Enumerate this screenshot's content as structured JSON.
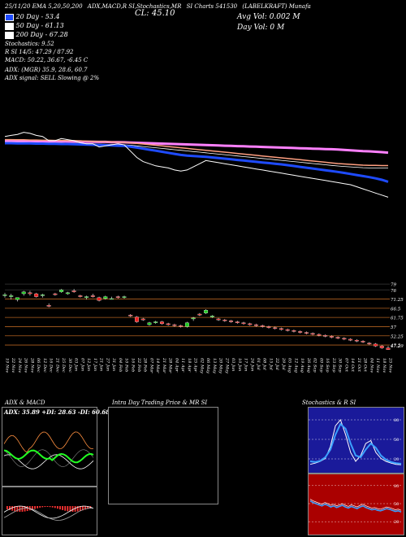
{
  "header": {
    "top_row": [
      "25/11/20 EMA 5,20,50,200",
      "ADX,MACD,R SI,Stochastics,MR",
      "SI Charts 541530",
      "(LABELKRAFT) Munafa"
    ],
    "close": "CL: 45.10",
    "ema_labels": [
      "20  Day - 53.4",
      "50  Day - 61.13",
      "200  Day - 67.28"
    ],
    "stoch_line": "Stochastics: 9.52",
    "rsi_line": "R                SI 14/5: 47.29 / 87.92",
    "macd_line": "MACD: 50.22, 36.67, -6.45  C",
    "adx_line": "ADX:                               (MGR) 35.9,  28.6,  60.7",
    "signal_line": "ADX  signal: SELL  Slowing @ 2%",
    "avg_vol": "Avg Vol: 0.002  M",
    "day_vol": "Day Vol: 0   M"
  },
  "colors": {
    "ema20": "#1e4bff",
    "ema50": "#ff9f80",
    "ema200": "#ff80ff",
    "ema5": "#ffffff",
    "bull": "#22cc22",
    "bear": "#ee2222",
    "grid": "#b06020",
    "adx_line": "#ffffff",
    "dip": "#22ff22",
    "dim": "#ff9040",
    "stoch_bg": "#1a1a9a",
    "rsi_bg": "#aa0000"
  },
  "chart_data": [
    {
      "type": "candlestick",
      "title": "Daily price",
      "y_ticks": [
        79,
        76,
        71.25,
        66.5,
        61.75,
        57,
        52.25,
        47.5,
        47.29
      ],
      "ylim": [
        45,
        82
      ],
      "dates": [
        "19 Nov",
        "22 Nov",
        "24 Nov",
        "26 Nov",
        "28 Nov",
        "06 Dec",
        "12 Dec",
        "16 Dec",
        "21 Dec",
        "25 Dec",
        "30 Dec",
        "03 Jan",
        "07 Jan",
        "12 Jan",
        "17 Jan",
        "21 Jan",
        "27 Jan",
        "31 Jan",
        "04 Feb",
        "10 Feb",
        "16 Feb",
        "22 Feb",
        "28 Feb",
        "07 Mar",
        "14 Mar",
        "21 Mar",
        "28 Mar",
        "04 Apr",
        "11 Apr",
        "18 Apr",
        "25 Apr",
        "02 May",
        "06 May",
        "13 May",
        "20 May",
        "27 May",
        "03 Jun",
        "10 Jun",
        "17 Jun",
        "24 Jun",
        "01 Jul",
        "08 Jul",
        "15 Jul",
        "22 Jul",
        "29 Jul",
        "05 Aug",
        "12 Aug",
        "19 Aug",
        "26 Aug",
        "02 Sep",
        "09 Sep",
        "16 Sep",
        "23 Sep",
        "30 Sep",
        "07 Oct",
        "14 Oct",
        "21 Oct",
        "28 Oct",
        "04 Nov",
        "11 Nov",
        "18 Nov",
        "25 Nov"
      ],
      "candles": [
        {
          "o": 73,
          "h": 74.5,
          "l": 72,
          "c": 73.5
        },
        {
          "o": 72.5,
          "h": 74,
          "l": 71,
          "c": 73
        },
        {
          "o": 71,
          "h": 72,
          "l": 70,
          "c": 72
        },
        {
          "o": 74,
          "h": 75.5,
          "l": 73,
          "c": 75
        },
        {
          "o": 74.5,
          "h": 75.5,
          "l": 73,
          "c": 74
        },
        {
          "o": 74,
          "h": 74.5,
          "l": 72,
          "c": 72.5
        },
        {
          "o": 73,
          "h": 74,
          "l": 72,
          "c": 73.5
        },
        {
          "o": 68,
          "h": 69,
          "l": 67,
          "c": 67.5
        },
        {
          "o": 74,
          "h": 74.5,
          "l": 73,
          "c": 73.5
        },
        {
          "o": 75,
          "h": 76.5,
          "l": 74.5,
          "c": 76
        },
        {
          "o": 74,
          "h": 75,
          "l": 73.5,
          "c": 74.5
        },
        {
          "o": 75.5,
          "h": 76.5,
          "l": 74.5,
          "c": 75
        },
        {
          "o": 73,
          "h": 73.5,
          "l": 72,
          "c": 72.5
        },
        {
          "o": 72,
          "h": 73,
          "l": 71,
          "c": 72.5
        },
        {
          "o": 73,
          "h": 74,
          "l": 72,
          "c": 72.5
        },
        {
          "o": 72,
          "h": 72.5,
          "l": 70,
          "c": 70.5
        },
        {
          "o": 71.5,
          "h": 73,
          "l": 71,
          "c": 72.5
        },
        {
          "o": 71.5,
          "h": 72.5,
          "l": 71,
          "c": 71.5
        },
        {
          "o": 72.5,
          "h": 73,
          "l": 71.5,
          "c": 72
        },
        {
          "o": 72,
          "h": 73,
          "l": 71.5,
          "c": 72.5
        },
        {
          "o": 63,
          "h": 63.5,
          "l": 62,
          "c": 62.5
        },
        {
          "o": 62,
          "h": 62.5,
          "l": 59,
          "c": 59.5
        },
        {
          "o": 61,
          "h": 61.5,
          "l": 60,
          "c": 60.5
        },
        {
          "o": 58,
          "h": 59.5,
          "l": 57.5,
          "c": 59
        },
        {
          "o": 59,
          "h": 60,
          "l": 58.5,
          "c": 59.5
        },
        {
          "o": 59.5,
          "h": 60,
          "l": 58,
          "c": 58.5
        },
        {
          "o": 58.5,
          "h": 59,
          "l": 57.5,
          "c": 58
        },
        {
          "o": 58,
          "h": 58.5,
          "l": 57,
          "c": 57.5
        },
        {
          "o": 57.5,
          "h": 58,
          "l": 56.5,
          "c": 57
        },
        {
          "o": 57,
          "h": 59.5,
          "l": 56.5,
          "c": 59
        },
        {
          "o": 61,
          "h": 62,
          "l": 60,
          "c": 61.5
        },
        {
          "o": 63.5,
          "h": 64,
          "l": 62.5,
          "c": 63
        },
        {
          "o": 64,
          "h": 66,
          "l": 63.5,
          "c": 65.5
        },
        {
          "o": 62,
          "h": 63,
          "l": 61.5,
          "c": 62.5
        },
        {
          "o": 61,
          "h": 61.5,
          "l": 60,
          "c": 60.5
        },
        {
          "o": 60.5,
          "h": 61,
          "l": 59.5,
          "c": 60
        },
        {
          "o": 60,
          "h": 60.5,
          "l": 59,
          "c": 59.5
        },
        {
          "o": 59.5,
          "h": 60,
          "l": 58.5,
          "c": 59
        },
        {
          "o": 59,
          "h": 59.5,
          "l": 58,
          "c": 58.5
        },
        {
          "o": 58.5,
          "h": 59,
          "l": 57.5,
          "c": 58
        },
        {
          "o": 58,
          "h": 58.5,
          "l": 57,
          "c": 57.5
        },
        {
          "o": 57.5,
          "h": 58,
          "l": 56.5,
          "c": 57
        },
        {
          "o": 57,
          "h": 57.5,
          "l": 56,
          "c": 56.5
        },
        {
          "o": 56.5,
          "h": 57,
          "l": 55.5,
          "c": 56
        },
        {
          "o": 56,
          "h": 56.5,
          "l": 55,
          "c": 55.5
        },
        {
          "o": 55.5,
          "h": 56,
          "l": 54.5,
          "c": 55
        },
        {
          "o": 55,
          "h": 55.5,
          "l": 54,
          "c": 54.5
        },
        {
          "o": 54.5,
          "h": 55,
          "l": 53.5,
          "c": 54
        },
        {
          "o": 54,
          "h": 54.5,
          "l": 53,
          "c": 53.5
        },
        {
          "o": 53.5,
          "h": 54,
          "l": 52.5,
          "c": 53
        },
        {
          "o": 53,
          "h": 53.5,
          "l": 52,
          "c": 52.5
        },
        {
          "o": 52.5,
          "h": 53,
          "l": 51.5,
          "c": 52
        },
        {
          "o": 52,
          "h": 52.5,
          "l": 51,
          "c": 51.5
        },
        {
          "o": 51.5,
          "h": 52,
          "l": 50.5,
          "c": 51
        },
        {
          "o": 51,
          "h": 51.5,
          "l": 50,
          "c": 50.5
        },
        {
          "o": 50.5,
          "h": 51,
          "l": 49.5,
          "c": 50
        },
        {
          "o": 50,
          "h": 50.5,
          "l": 49,
          "c": 49.5
        },
        {
          "o": 49.5,
          "h": 50,
          "l": 48.5,
          "c": 49
        },
        {
          "o": 48.5,
          "h": 49,
          "l": 47.5,
          "c": 48
        },
        {
          "o": 48,
          "h": 48.5,
          "l": 46.5,
          "c": 47
        },
        {
          "o": 47,
          "h": 47.5,
          "l": 45.5,
          "c": 46
        },
        {
          "o": 46,
          "h": 47,
          "l": 45,
          "c": 45.1
        }
      ],
      "ema5": [
        75,
        75.5,
        76,
        77,
        76.5,
        75.5,
        75,
        73,
        73,
        74,
        73.5,
        73,
        72,
        71.5,
        71.5,
        70,
        70.5,
        71,
        71.5,
        71,
        68,
        65,
        63,
        62,
        61,
        60.5,
        60,
        59,
        58.5,
        59,
        60.5,
        62,
        63.5,
        63,
        62.5,
        62,
        61.5,
        61,
        60.5,
        60,
        59.5,
        59,
        58.5,
        58,
        57.5,
        57,
        56.5,
        56,
        55.5,
        55,
        54.5,
        54,
        53.5,
        53,
        52.5,
        52,
        51,
        50,
        49,
        48,
        47,
        46
      ],
      "ema20": [
        71.8,
        71.8,
        71.7,
        71.7,
        71.7,
        71.6,
        71.6,
        71.5,
        71.5,
        71.4,
        71.4,
        71.3,
        71.2,
        71.1,
        71,
        70.9,
        70.8,
        70.7,
        70.6,
        70.5,
        70.1,
        69.7,
        69.2,
        68.7,
        68.2,
        67.7,
        67.2,
        66.7,
        66.2,
        65.9,
        65.7,
        65.5,
        65.3,
        65,
        64.7,
        64.4,
        64.1,
        63.8,
        63.5,
        63.2,
        62.9,
        62.6,
        62.3,
        62,
        61.7,
        61.3,
        60.9,
        60.5,
        60.1,
        59.7,
        59.3,
        58.9,
        58.5,
        58.1,
        57.6,
        57.1,
        56.6,
        56.1,
        55.6,
        55,
        54.3,
        53.4
      ],
      "ema50": [
        73.5,
        73.5,
        73.4,
        73.4,
        73.3,
        73.3,
        73.2,
        73.2,
        73.1,
        73.1,
        73,
        73,
        72.9,
        72.8,
        72.7,
        72.6,
        72.5,
        72.4,
        72.3,
        72.2,
        72,
        71.7,
        71.4,
        71.1,
        70.8,
        70.5,
        70.2,
        69.9,
        69.6,
        69.3,
        69,
        68.7,
        68.4,
        68.1,
        67.8,
        67.5,
        67.2,
        66.9,
        66.6,
        66.3,
        66,
        65.7,
        65.4,
        65.1,
        64.8,
        64.5,
        64.2,
        63.9,
        63.6,
        63.3,
        63,
        62.7,
        62.4,
        62.1,
        61.9,
        61.7,
        61.5,
        61.3,
        61.2,
        61.2,
        61.1,
        61.13
      ],
      "ema200": [
        72.8,
        72.8,
        72.8,
        72.8,
        72.8,
        72.8,
        72.7,
        72.7,
        72.7,
        72.7,
        72.6,
        72.6,
        72.6,
        72.5,
        72.5,
        72.4,
        72.4,
        72.3,
        72.3,
        72.2,
        72.1,
        72,
        71.9,
        71.8,
        71.7,
        71.6,
        71.5,
        71.4,
        71.3,
        71.2,
        71.1,
        71,
        70.9,
        70.8,
        70.7,
        70.6,
        70.5,
        70.4,
        70.3,
        70.2,
        70.1,
        70,
        69.9,
        69.8,
        69.7,
        69.6,
        69.5,
        69.4,
        69.3,
        69.2,
        69.1,
        69,
        68.9,
        68.8,
        68.6,
        68.4,
        68.2,
        68,
        67.9,
        67.7,
        67.5,
        67.28
      ]
    }
  ],
  "panels": {
    "adx_title": "ADX  & MACD",
    "adx_values": "ADX: 35.89  +DI: 28.63  -DI: 60.68",
    "mrsi_title": "Intra  Day Trading Price  & MR                    SI",
    "stoch_title": "Stochastics & R                    SI",
    "stoch_ticks": [
      "80",
      "50",
      "20"
    ],
    "rsi_ticks": [
      "80",
      "50",
      "20"
    ]
  }
}
